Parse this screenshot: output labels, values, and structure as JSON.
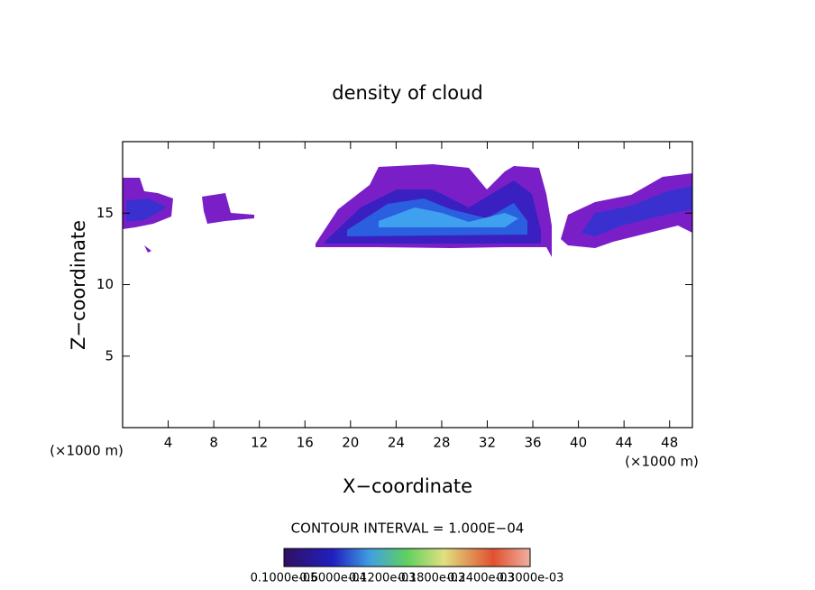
{
  "chart_data": {
    "type": "contour",
    "title": "density of cloud",
    "xlabel": "X−coordinate",
    "ylabel": "Z−coordinate",
    "x_unit": "(×1000 m)",
    "xlim": [
      0,
      50
    ],
    "xticks": [
      4,
      8,
      12,
      16,
      20,
      24,
      28,
      32,
      36,
      40,
      44,
      48
    ],
    "ylim": [
      0,
      20
    ],
    "yticks": [
      5,
      10,
      15
    ],
    "contour_interval": "CONTOUR INTERVAL = 1.000E−04",
    "colorbar_labels": [
      "0.1000e-05",
      "0.6000e-04",
      "0.1200e-03",
      "0.1800e-03",
      "0.2400e-03",
      "0.3000e-03"
    ]
  }
}
